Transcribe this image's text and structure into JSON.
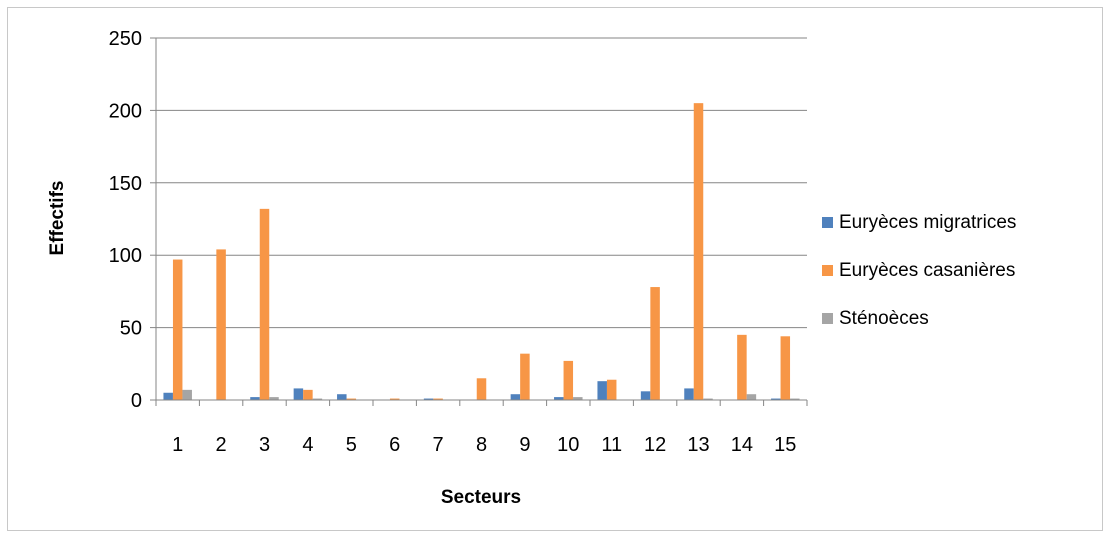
{
  "chart_data": {
    "type": "bar",
    "xlabel": "Secteurs",
    "ylabel": "Effectifs",
    "ylim": [
      0,
      250
    ],
    "yticks": [
      0,
      50,
      100,
      150,
      200,
      250
    ],
    "grid": true,
    "legend_position": "right",
    "categories": [
      "1",
      "2",
      "3",
      "4",
      "5",
      "6",
      "7",
      "8",
      "9",
      "10",
      "11",
      "12",
      "13",
      "14",
      "15"
    ],
    "series": [
      {
        "name": "Euryèces migratrices",
        "color": "#4f81bd",
        "values": [
          5,
          0,
          2,
          8,
          4,
          0,
          1,
          0,
          4,
          2,
          13,
          6,
          8,
          0,
          1
        ]
      },
      {
        "name": "Euryèces casanières",
        "color": "#f79646",
        "values": [
          97,
          104,
          132,
          7,
          1,
          1,
          1,
          15,
          32,
          27,
          14,
          78,
          205,
          45,
          44
        ]
      },
      {
        "name": "Sténoèces",
        "color": "#a5a5a5",
        "values": [
          7,
          0,
          2,
          1,
          0,
          0,
          0,
          0,
          0,
          2,
          0,
          0,
          1,
          4,
          1
        ]
      }
    ]
  }
}
